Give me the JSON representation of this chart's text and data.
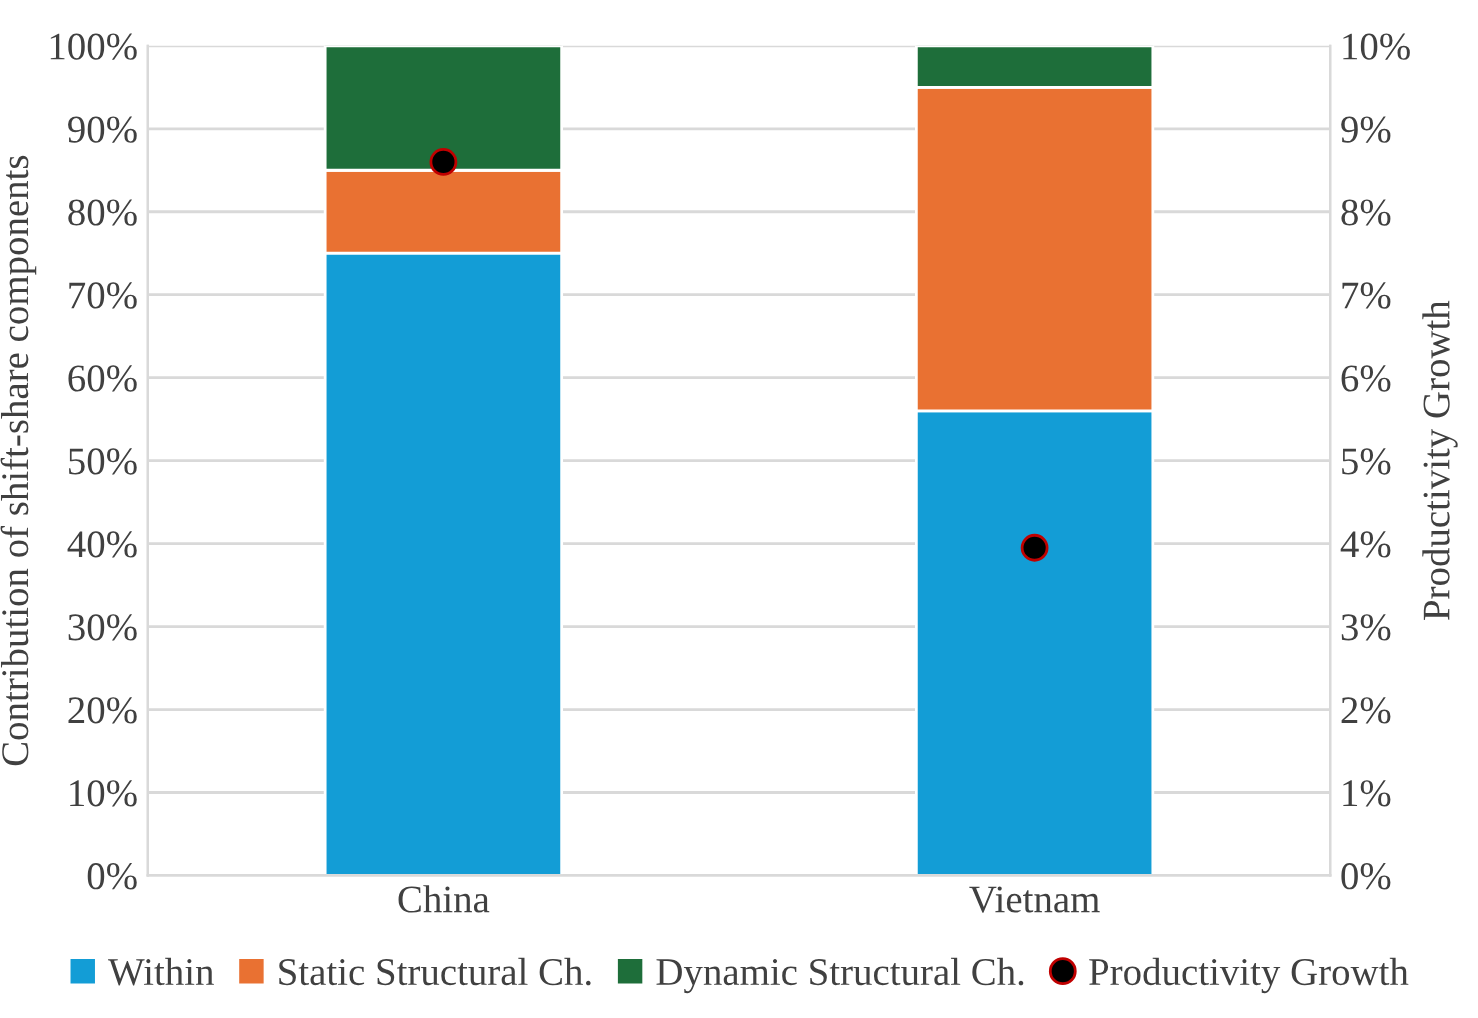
{
  "chart_data": {
    "type": "bar",
    "stacked": true,
    "categories": [
      "China",
      "Vietnam"
    ],
    "ylabel": "Contribution of shift-share components",
    "y2label": "Productivity Growth",
    "series": [
      {
        "name": "Within",
        "color": "#139dd6",
        "values": [
          75,
          56
        ]
      },
      {
        "name": "Static Structural Ch.",
        "color": "#e97132",
        "values": [
          10,
          39
        ]
      },
      {
        "name": "Dynamic Structural Ch.",
        "color": "#1e6e3a",
        "values": [
          15,
          5
        ]
      },
      {
        "name": "Productivity Growth",
        "type": "scatter",
        "axis": "y2",
        "color": "#000000",
        "values": [
          8.6,
          3.95
        ]
      }
    ],
    "ylim": [
      0,
      100
    ],
    "yticks": [
      {
        "value": 0,
        "label": "0%"
      },
      {
        "value": 10,
        "label": "10%"
      },
      {
        "value": 20,
        "label": "20%"
      },
      {
        "value": 30,
        "label": "30%"
      },
      {
        "value": 40,
        "label": "40%"
      },
      {
        "value": 50,
        "label": "50%"
      },
      {
        "value": 60,
        "label": "60%"
      },
      {
        "value": 70,
        "label": "70%"
      },
      {
        "value": 80,
        "label": "80%"
      },
      {
        "value": 90,
        "label": "90%"
      },
      {
        "value": 100,
        "label": "100%"
      }
    ],
    "y2lim": [
      0,
      10
    ],
    "y2ticks": [
      {
        "value": 0,
        "label": "0%"
      },
      {
        "value": 1,
        "label": "1%"
      },
      {
        "value": 2,
        "label": "2%"
      },
      {
        "value": 3,
        "label": "3%"
      },
      {
        "value": 4,
        "label": "4%"
      },
      {
        "value": 5,
        "label": "5%"
      },
      {
        "value": 6,
        "label": "6%"
      },
      {
        "value": 7,
        "label": "7%"
      },
      {
        "value": 8,
        "label": "8%"
      },
      {
        "value": 9,
        "label": "9%"
      },
      {
        "value": 10,
        "label": "10%"
      }
    ],
    "grid": "y",
    "legend": "bottom",
    "marker": "circle"
  }
}
